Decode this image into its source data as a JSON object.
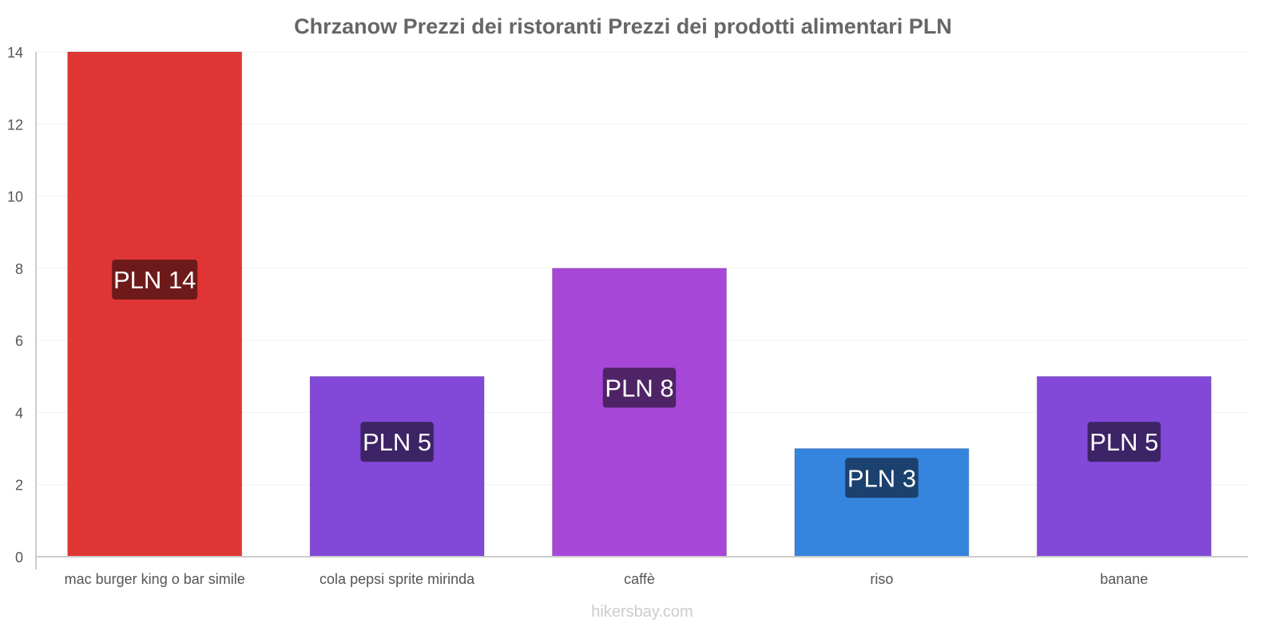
{
  "chart_data": {
    "type": "bar",
    "title": "Chrzanow Prezzi dei ristoranti Prezzi dei prodotti alimentari PLN",
    "xlabel": "",
    "ylabel": "",
    "ylim": [
      0,
      14
    ],
    "yticks": [
      0,
      2,
      4,
      6,
      8,
      10,
      12,
      14
    ],
    "grid": true,
    "categories": [
      "mac burger king o bar simile",
      "cola pepsi sprite mirinda",
      "caffè",
      "riso",
      "banane"
    ],
    "values": [
      14,
      5,
      8,
      3,
      5
    ],
    "data_labels": [
      "PLN 14",
      "PLN 5",
      "PLN 8",
      "PLN 3",
      "PLN 5"
    ],
    "bar_colors": [
      "#e03535",
      "#8248d8",
      "#a747d8",
      "#3584de",
      "#8248d8"
    ],
    "label_colors": [
      "#6e1a1a",
      "#3d2466",
      "#4f2466",
      "#1b416e",
      "#3d2466"
    ]
  },
  "watermark": "hikersbay.com"
}
